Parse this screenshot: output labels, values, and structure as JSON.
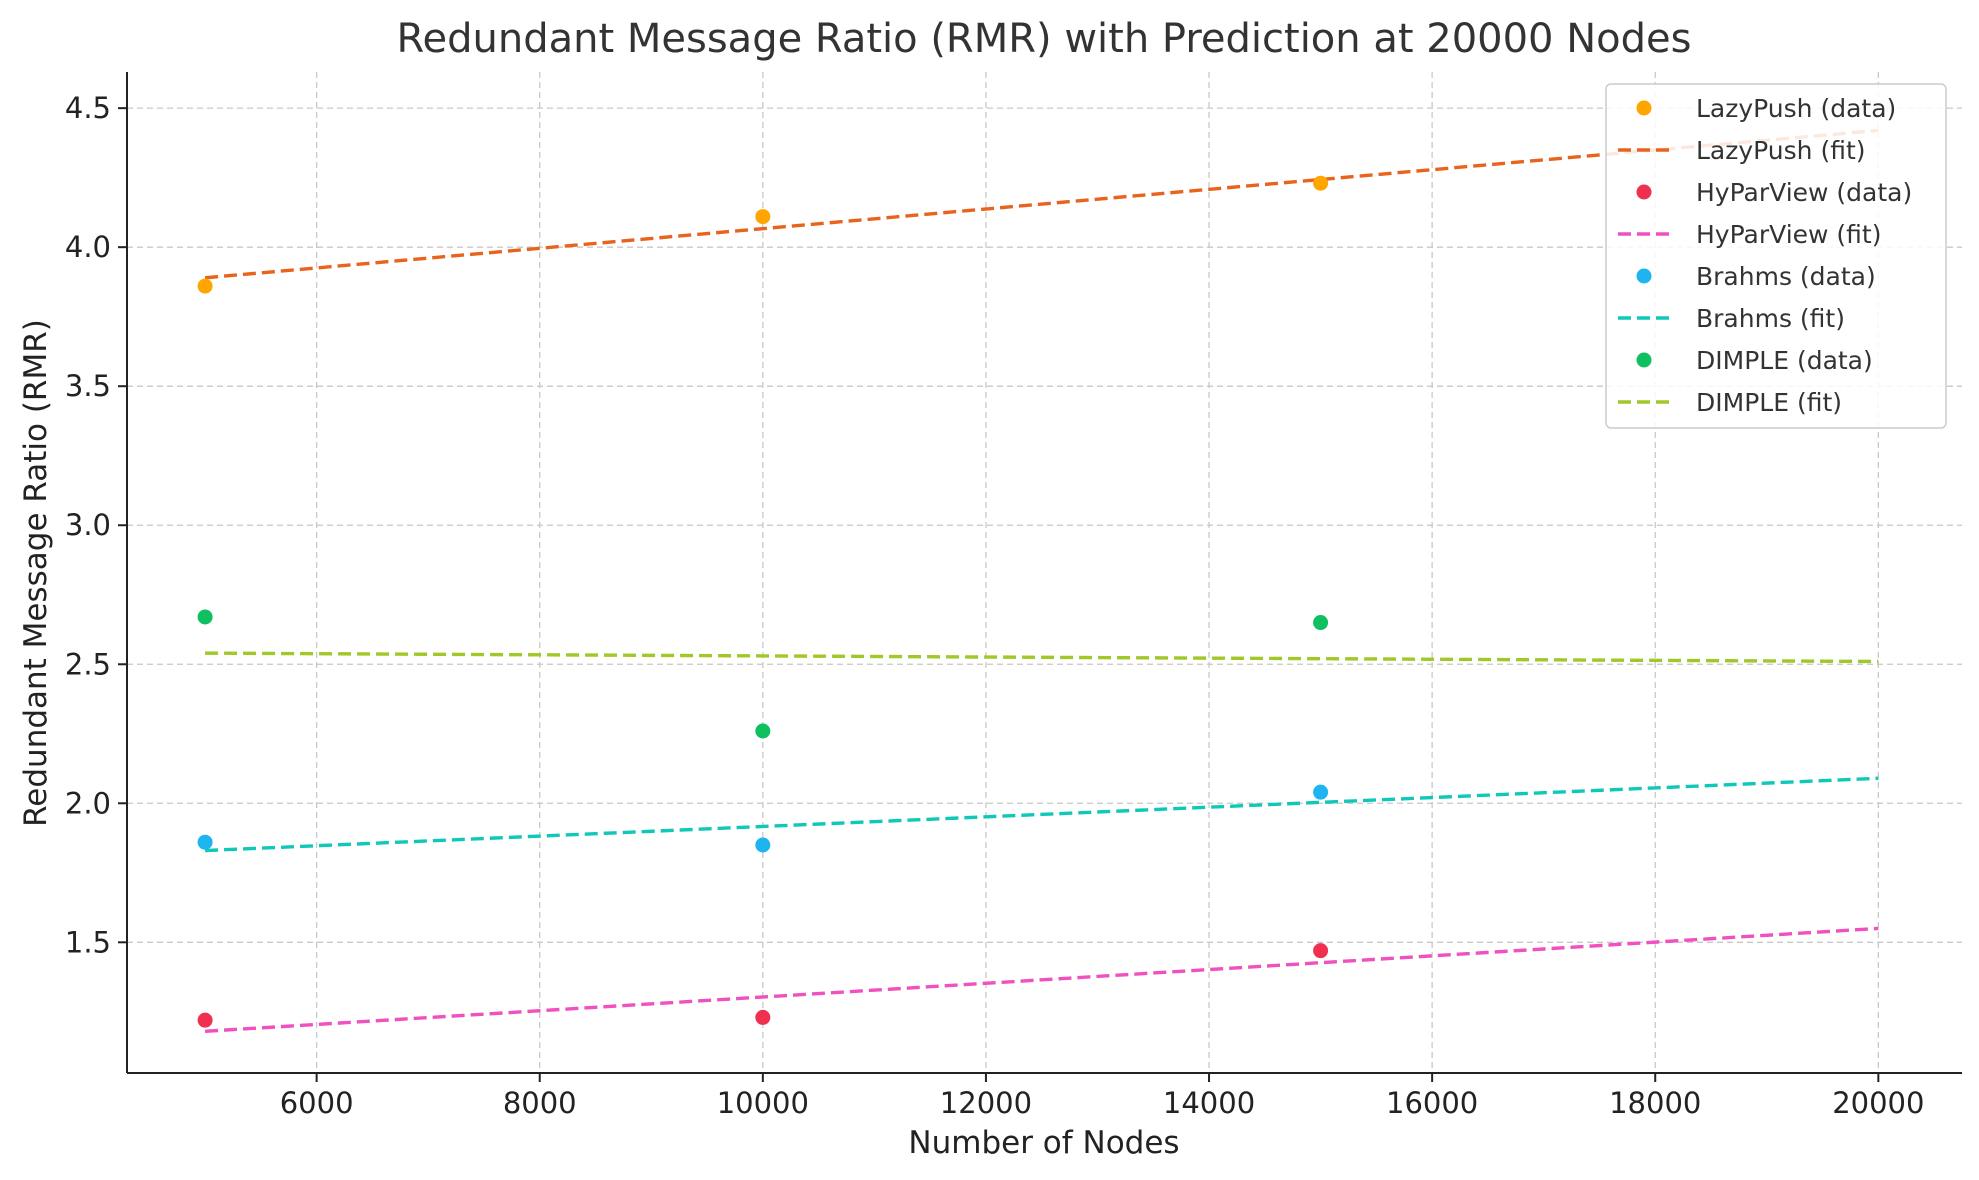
{
  "chart_data": {
    "type": "scatter",
    "title": "Redundant Message Ratio (RMR) with Prediction at 20000 Nodes",
    "xlabel": "Number of Nodes",
    "ylabel": "Redundant Message Ratio (RMR)",
    "xlim": [
      4300,
      20750
    ],
    "ylim": [
      1.03,
      4.63
    ],
    "x_ticks": [
      6000,
      8000,
      10000,
      12000,
      14000,
      16000,
      18000,
      20000
    ],
    "x_tick_labels": [
      "6000",
      "8000",
      "10000",
      "12000",
      "14000",
      "16000",
      "18000",
      "20000"
    ],
    "y_ticks": [
      1.5,
      2.0,
      2.5,
      3.0,
      3.5,
      4.0,
      4.5
    ],
    "y_tick_labels": [
      "1.5",
      "2.0",
      "2.5",
      "3.0",
      "3.5",
      "4.0",
      "4.5"
    ],
    "grid": true,
    "legend_position": "top-right",
    "series": [
      {
        "name": "LazyPush (data)",
        "kind": "points",
        "color": "#FFA500",
        "x": [
          5000,
          10000,
          15000
        ],
        "y": [
          3.86,
          4.11,
          4.23
        ]
      },
      {
        "name": "LazyPush (fit)",
        "kind": "dashed-line",
        "color": "#E8641E",
        "x": [
          5000,
          20000
        ],
        "y": [
          3.89,
          4.42
        ]
      },
      {
        "name": "HyParView (data)",
        "kind": "points",
        "color": "#F03050",
        "x": [
          5000,
          10000,
          15000
        ],
        "y": [
          1.22,
          1.23,
          1.47
        ]
      },
      {
        "name": "HyParView (fit)",
        "kind": "dashed-line",
        "color": "#F050C0",
        "x": [
          5000,
          20000
        ],
        "y": [
          1.18,
          1.55
        ]
      },
      {
        "name": "Brahms (data)",
        "kind": "points",
        "color": "#1EB4F0",
        "x": [
          5000,
          10000,
          15000
        ],
        "y": [
          1.86,
          1.85,
          2.04
        ]
      },
      {
        "name": "Brahms (fit)",
        "kind": "dashed-line",
        "color": "#10C8B8",
        "x": [
          5000,
          20000
        ],
        "y": [
          1.83,
          2.09
        ]
      },
      {
        "name": "DIMPLE (data)",
        "kind": "points",
        "color": "#10C060",
        "x": [
          5000,
          10000,
          15000
        ],
        "y": [
          2.67,
          2.26,
          2.65
        ]
      },
      {
        "name": "DIMPLE (fit)",
        "kind": "dashed-line",
        "color": "#A0C828",
        "x": [
          5000,
          20000
        ],
        "y": [
          2.54,
          2.51
        ]
      }
    ]
  }
}
